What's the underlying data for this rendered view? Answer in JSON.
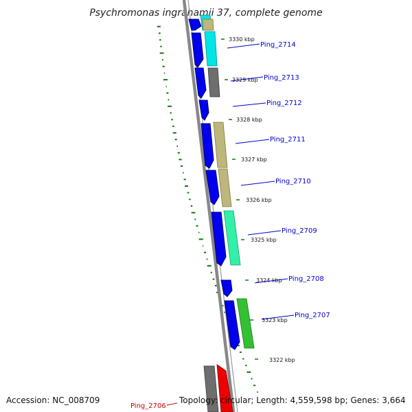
{
  "map": {
    "title": "Psychromonas ingrahamii 37, complete genome",
    "accession": "Accession: NC_008709",
    "topology": "Topology: circular; Length: 4,559,598 bp; Genes: 3,664"
  },
  "scale_labels": [
    "3330 kbp",
    "3329 kbp",
    "3328 kbp",
    "3327 kbp",
    "3326 kbp",
    "3325 kbp",
    "3324 kbp",
    "3323 kbp",
    "3322 kbp"
  ],
  "genes": [
    {
      "id": "Ping_2714",
      "color": "#0000cc"
    },
    {
      "id": "Ping_2713",
      "color": "#0000cc"
    },
    {
      "id": "Ping_2712",
      "color": "#0000cc"
    },
    {
      "id": "Ping_2711",
      "color": "#0000cc"
    },
    {
      "id": "Ping_2710",
      "color": "#0000cc"
    },
    {
      "id": "Ping_2709",
      "color": "#0000cc"
    },
    {
      "id": "Ping_2708",
      "color": "#0000cc"
    },
    {
      "id": "Ping_2707",
      "color": "#0000cc"
    },
    {
      "id": "Ping_2706",
      "color": "#cc0000"
    }
  ],
  "colors": {
    "cds": "#0000ee",
    "backbone": "#808080",
    "gc_skew": "#0a7a0a",
    "cog_khaki": "#bdb77b",
    "cog_cyan": "#00e5e5",
    "cog_gray": "#6e6e6e",
    "cog_aquamarine": "#33f0a8",
    "cog_green": "#33c033",
    "cog_red": "#ee0000"
  }
}
